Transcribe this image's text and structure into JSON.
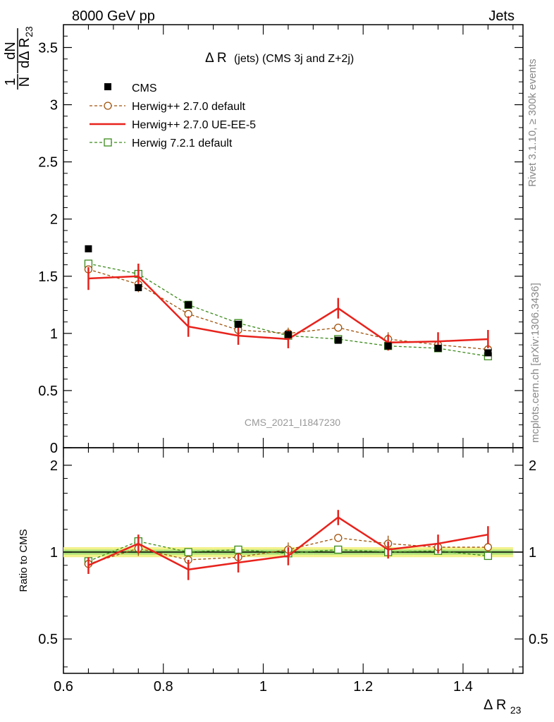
{
  "header": {
    "left": "8000 GeV pp",
    "right": "Jets"
  },
  "side_labels": {
    "rivet": "Rivet 3.1.10, ≥ 300k events",
    "mcplots": "mcplots.cern.ch [arXiv:1306.3436]"
  },
  "watermark": "CMS_2021_I1847230",
  "colors": {
    "cms": "#000000",
    "herwig_default": "#a0520a",
    "herwig_ue": "#e8221c",
    "herwig7": "#3a8a1a",
    "band_yellow": "#f2f28a",
    "band_green": "#a8e07a"
  },
  "chart_data": [
    {
      "type": "scatter",
      "panel": "main",
      "title": "Δ R (jets) (CMS 3j and Z+2j)",
      "title_main": "Δ R",
      "title_suffix": "(jets) (CMS 3j and Z+2j)",
      "xlabel": "Δ R",
      "xlabel_sub": "23",
      "ylabel_num": "1",
      "ylabel_den": "N",
      "ylabel_dnum": "dN",
      "ylabel_dden": "dΔ R",
      "ylabel_sub": "23",
      "xlim": [
        0.6,
        1.52
      ],
      "ylim": [
        0,
        3.7
      ],
      "x_ticks": [
        "0.6",
        "0.8",
        "1",
        "1.2",
        "1.4"
      ],
      "y_ticks": [
        "0",
        "0.5",
        "1",
        "1.5",
        "2",
        "2.5",
        "3",
        "3.5"
      ],
      "legend": [
        "CMS",
        "Herwig++ 2.7.0 default",
        "Herwig++ 2.7.0 UE-EE-5",
        "Herwig 7.2.1 default"
      ],
      "x": [
        0.65,
        0.75,
        0.85,
        0.95,
        1.05,
        1.15,
        1.25,
        1.35,
        1.45
      ],
      "series": [
        {
          "name": "CMS",
          "values": [
            1.74,
            1.4,
            1.25,
            1.08,
            0.99,
            0.94,
            0.89,
            0.87,
            0.83
          ]
        },
        {
          "name": "Herwig++ 2.7.0 default",
          "values": [
            1.56,
            1.43,
            1.17,
            1.03,
            1.0,
            1.05,
            0.95,
            0.9,
            0.86
          ],
          "errors": [
            0.03,
            0.07,
            0.03,
            0.03,
            0.05,
            0.03,
            0.06,
            0.03,
            0.04
          ]
        },
        {
          "name": "Herwig++ 2.7.0 UE-EE-5",
          "values": [
            1.48,
            1.5,
            1.06,
            0.98,
            0.95,
            1.22,
            0.92,
            0.93,
            0.95
          ],
          "errors": [
            0.1,
            0.11,
            0.09,
            0.08,
            0.08,
            0.09,
            0.07,
            0.08,
            0.08
          ]
        },
        {
          "name": "Herwig 7.2.1 default",
          "values": [
            1.61,
            1.52,
            1.25,
            1.09,
            0.98,
            0.95,
            0.89,
            0.87,
            0.8
          ],
          "errors": [
            0.02,
            0.03,
            0.02,
            0.02,
            0.02,
            0.02,
            0.02,
            0.02,
            0.02
          ]
        }
      ]
    },
    {
      "type": "scatter",
      "panel": "ratio",
      "ylabel": "Ratio to CMS",
      "xlim": [
        0.6,
        1.52
      ],
      "ylim": [
        0.38,
        2.3
      ],
      "y_scale": "log",
      "y_ticks": [
        "0.5",
        "1",
        "2"
      ],
      "x": [
        0.65,
        0.75,
        0.85,
        0.95,
        1.05,
        1.15,
        1.25,
        1.35,
        1.45
      ],
      "band_stat": [
        0.02,
        0.02,
        0.02,
        0.02,
        0.02,
        0.02,
        0.02,
        0.02,
        0.02
      ],
      "band_total": [
        0.04,
        0.04,
        0.04,
        0.04,
        0.04,
        0.04,
        0.04,
        0.04,
        0.04
      ],
      "series": [
        {
          "name": "Herwig++ 2.7.0 default",
          "values": [
            0.91,
            1.03,
            0.94,
            0.96,
            1.02,
            1.12,
            1.07,
            1.04,
            1.04
          ],
          "errors": [
            0.03,
            0.06,
            0.03,
            0.03,
            0.06,
            0.03,
            0.07,
            0.03,
            0.04
          ]
        },
        {
          "name": "Herwig++ 2.7.0 UE-EE-5",
          "values": [
            0.9,
            1.07,
            0.87,
            0.92,
            0.97,
            1.32,
            1.02,
            1.07,
            1.15
          ],
          "errors": [
            0.06,
            0.08,
            0.07,
            0.07,
            0.07,
            0.08,
            0.07,
            0.08,
            0.08
          ]
        },
        {
          "name": "Herwig 7.2.1 default",
          "values": [
            0.93,
            1.09,
            1.0,
            1.02,
            0.99,
            1.02,
            1.0,
            1.01,
            0.97
          ],
          "errors": [
            0.01,
            0.02,
            0.01,
            0.01,
            0.01,
            0.01,
            0.01,
            0.01,
            0.01
          ]
        }
      ]
    }
  ]
}
